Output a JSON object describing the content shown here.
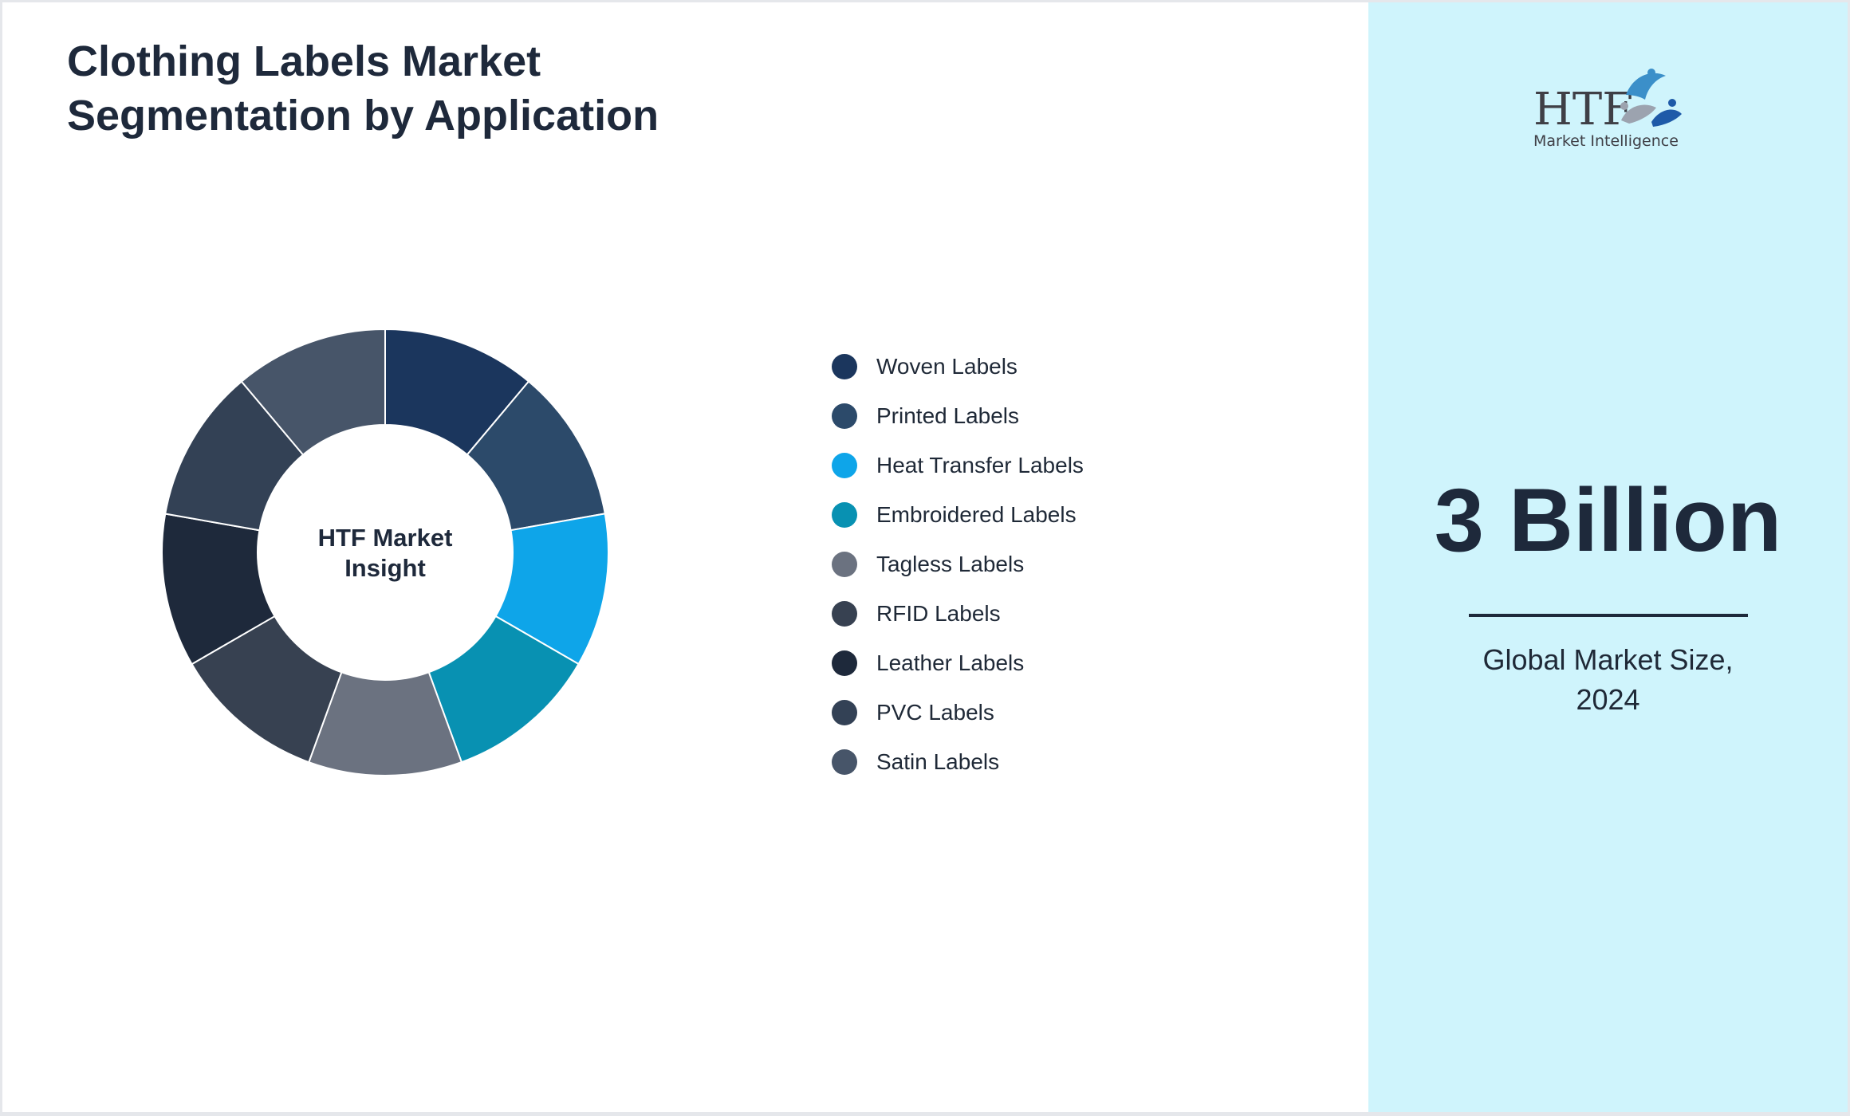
{
  "title_lines": [
    "Clothing Labels Market",
    "Segmentation by Application"
  ],
  "chart_data": {
    "type": "pie",
    "variant": "donut",
    "center_label_lines": [
      "HTF Market",
      "Insight"
    ],
    "categories": [
      "Woven Labels",
      "Printed Labels",
      "Heat Transfer Labels",
      "Embroidered Labels",
      "Tagless Labels",
      "RFID Labels",
      "Leather Labels",
      "PVC Labels",
      "Satin Labels"
    ],
    "values": [
      11.11,
      11.11,
      11.11,
      11.11,
      11.11,
      11.11,
      11.11,
      11.11,
      11.12
    ],
    "colors": [
      "#1b365d",
      "#2c4a6a",
      "#0ea5e9",
      "#0891b2",
      "#6b7280",
      "#374151",
      "#1e293b",
      "#334155",
      "#475569"
    ],
    "legend_position": "right"
  },
  "logo": {
    "brand": "HTF",
    "tagline": "Market Intelligence"
  },
  "kpi": {
    "value": "3 Billion",
    "label_lines": [
      "Global Market Size,",
      "2024"
    ]
  }
}
